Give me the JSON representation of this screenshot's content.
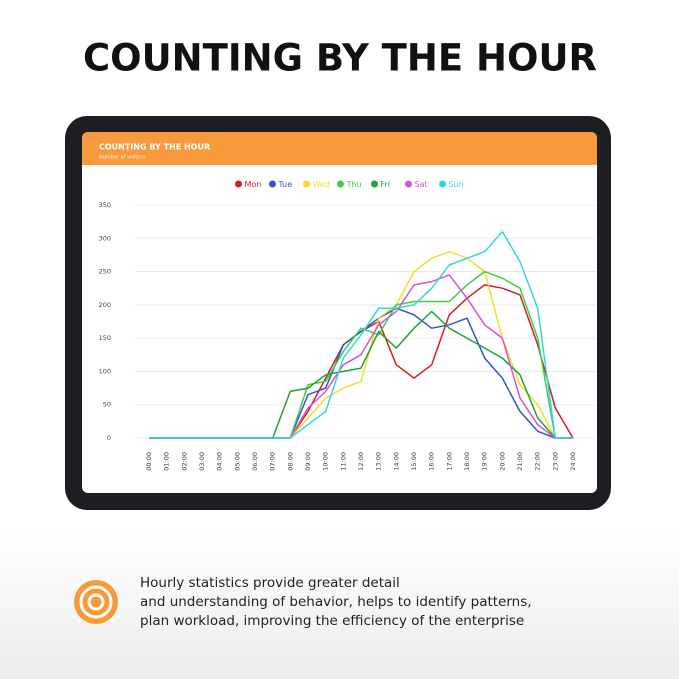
{
  "header": {
    "title": "COUNTING BY THE HOUR"
  },
  "chart_data": {
    "type": "line",
    "title": "COUNTING BY THE HOUR",
    "subtitle": "Number of visitors",
    "categories": [
      "00:00",
      "01:00",
      "02:00",
      "03:00",
      "04:00",
      "05:00",
      "06:00",
      "07:00",
      "08:00",
      "09:00",
      "10:00",
      "11:00",
      "12:00",
      "13:00",
      "14:00",
      "15:00",
      "16:00",
      "17:00",
      "18:00",
      "19:00",
      "20:00",
      "21:00",
      "22:00",
      "23:00",
      "24:00"
    ],
    "series": [
      {
        "name": "Mon",
        "color": "#d11f25",
        "values": [
          0,
          0,
          0,
          0,
          0,
          0,
          0,
          0,
          0,
          40,
          90,
          140,
          160,
          175,
          110,
          90,
          110,
          185,
          210,
          230,
          225,
          215,
          140,
          45,
          0
        ]
      },
      {
        "name": "Tue",
        "color": "#3453c9",
        "values": [
          0,
          0,
          0,
          0,
          0,
          0,
          0,
          0,
          0,
          65,
          75,
          140,
          160,
          180,
          195,
          185,
          165,
          170,
          180,
          120,
          90,
          40,
          10,
          0,
          0
        ]
      },
      {
        "name": "Wed",
        "color": "#f3dc2c",
        "values": [
          0,
          0,
          0,
          0,
          0,
          0,
          0,
          0,
          0,
          30,
          60,
          75,
          85,
          180,
          200,
          250,
          270,
          280,
          270,
          250,
          150,
          80,
          50,
          0,
          0
        ]
      },
      {
        "name": "Thu",
        "color": "#3bd04a",
        "values": [
          0,
          0,
          0,
          0,
          0,
          0,
          0,
          0,
          0,
          80,
          85,
          130,
          165,
          155,
          200,
          205,
          205,
          205,
          230,
          250,
          240,
          225,
          150,
          0,
          0
        ]
      },
      {
        "name": "Fri",
        "color": "#1fa336",
        "values": [
          0,
          0,
          0,
          0,
          0,
          0,
          0,
          0,
          70,
          75,
          95,
          100,
          105,
          160,
          135,
          165,
          190,
          165,
          150,
          135,
          120,
          95,
          30,
          0,
          0
        ]
      },
      {
        "name": "Sat",
        "color": "#d257cf",
        "values": [
          0,
          0,
          0,
          0,
          0,
          0,
          0,
          0,
          0,
          45,
          70,
          110,
          125,
          170,
          190,
          230,
          235,
          245,
          210,
          170,
          150,
          60,
          20,
          0,
          0
        ]
      },
      {
        "name": "Sun",
        "color": "#33d6df",
        "values": [
          0,
          0,
          0,
          0,
          0,
          0,
          0,
          0,
          0,
          20,
          40,
          120,
          155,
          195,
          195,
          200,
          225,
          260,
          270,
          280,
          310,
          265,
          195,
          0,
          0
        ]
      }
    ],
    "ylim": [
      0,
      350
    ],
    "yticks": [
      0,
      50,
      100,
      150,
      200,
      250,
      300,
      350
    ],
    "grid": true,
    "legend": "top"
  },
  "description": [
    "Hourly statistics provide greater detail",
    "and understanding of behavior, helps to identify patterns,",
    "plan workload, improving the efficiency of the enterprise"
  ]
}
